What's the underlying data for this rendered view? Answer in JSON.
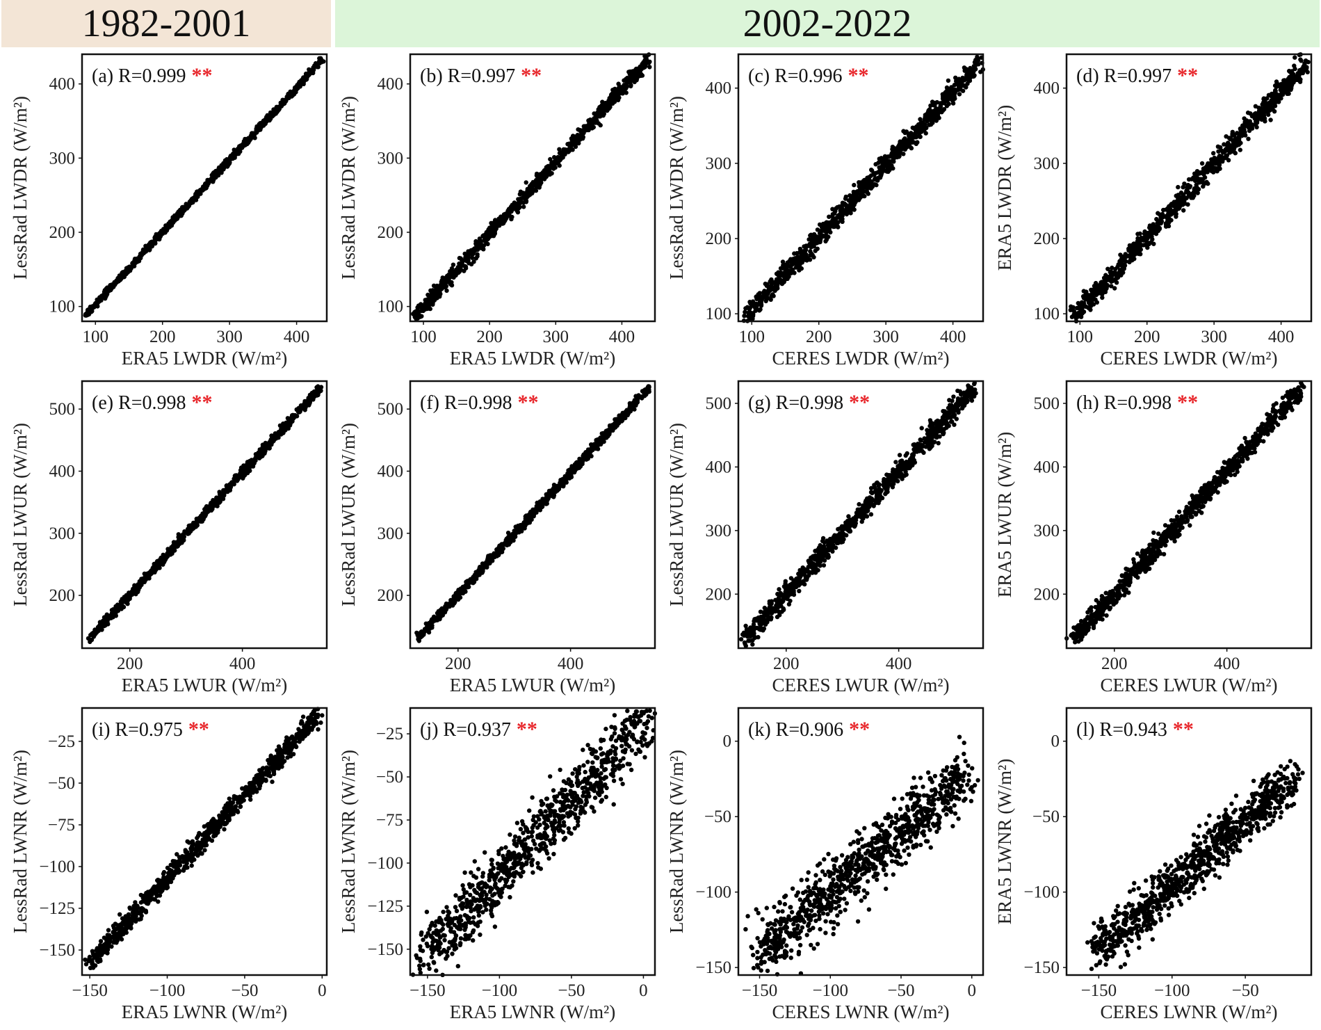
{
  "header": {
    "period_1": "1982-2001",
    "period_2": "2002-2022",
    "period_1_color": "#f3e5d6",
    "period_2_color": "#dcf5d9"
  },
  "significance_mark": "**",
  "significance_color": "#e8262b",
  "point_color": "#000000",
  "chart_data": [
    {
      "type": "scatter",
      "id": "a",
      "label": "(a) R=0.999",
      "r": 0.999,
      "xlabel": "ERA5 LWDR (W/m²)",
      "ylabel": "LessRad LWDR (W/m²)",
      "xlim": [
        80,
        445
      ],
      "ylim": [
        80,
        440
      ],
      "xticks": [
        100,
        200,
        300,
        400
      ],
      "yticks": [
        100,
        200,
        300,
        400
      ],
      "x_range": [
        85,
        438
      ],
      "y_range": [
        88,
        432
      ],
      "spread": 3
    },
    {
      "type": "scatter",
      "id": "b",
      "label": "(b) R=0.997",
      "r": 0.997,
      "xlabel": "ERA5 LWDR (W/m²)",
      "ylabel": "LessRad LWDR (W/m²)",
      "xlim": [
        80,
        450
      ],
      "ylim": [
        80,
        440
      ],
      "xticks": [
        100,
        200,
        300,
        400
      ],
      "yticks": [
        100,
        200,
        300,
        400
      ],
      "x_range": [
        88,
        440
      ],
      "y_range": [
        88,
        432
      ],
      "spread": 6
    },
    {
      "type": "scatter",
      "id": "c",
      "label": "(c) R=0.996",
      "r": 0.996,
      "xlabel": "CERES LWDR (W/m²)",
      "ylabel": "LessRad LWDR (W/m²)",
      "xlim": [
        80,
        445
      ],
      "ylim": [
        90,
        445
      ],
      "xticks": [
        100,
        200,
        300,
        400
      ],
      "yticks": [
        100,
        200,
        300,
        400
      ],
      "x_range": [
        90,
        440
      ],
      "y_range": [
        95,
        435
      ],
      "spread": 9
    },
    {
      "type": "scatter",
      "id": "d",
      "label": "(d) R=0.997",
      "r": 0.997,
      "xlabel": "CERES LWDR (W/m²)",
      "ylabel": "ERA5 LWDR (W/m²)",
      "xlim": [
        80,
        445
      ],
      "ylim": [
        90,
        445
      ],
      "xticks": [
        100,
        200,
        300,
        400
      ],
      "yticks": [
        100,
        200,
        300,
        400
      ],
      "x_range": [
        90,
        440
      ],
      "y_range": [
        95,
        435
      ],
      "spread": 9
    },
    {
      "type": "scatter",
      "id": "e",
      "label": "(e) R=0.998",
      "r": 0.998,
      "xlabel": "ERA5 LWUR (W/m²)",
      "ylabel": "LessRad LWUR (W/m²)",
      "xlim": [
        115,
        550
      ],
      "ylim": [
        115,
        545
      ],
      "xticks": [
        200,
        400
      ],
      "yticks": [
        200,
        300,
        400,
        500
      ],
      "x_range": [
        128,
        540
      ],
      "y_range": [
        130,
        535
      ],
      "spread": 5
    },
    {
      "type": "scatter",
      "id": "f",
      "label": "(f) R=0.998",
      "r": 0.998,
      "xlabel": "ERA5 LWUR (W/m²)",
      "ylabel": "LessRad LWUR (W/m²)",
      "xlim": [
        115,
        550
      ],
      "ylim": [
        115,
        545
      ],
      "xticks": [
        200,
        400
      ],
      "yticks": [
        200,
        300,
        400,
        500
      ],
      "x_range": [
        128,
        540
      ],
      "y_range": [
        130,
        535
      ],
      "spread": 5
    },
    {
      "type": "scatter",
      "id": "g",
      "label": "(g) R=0.998",
      "r": 0.998,
      "xlabel": "CERES LWUR (W/m²)",
      "ylabel": "LessRad LWUR (W/m²)",
      "xlim": [
        115,
        550
      ],
      "ylim": [
        115,
        535
      ],
      "xticks": [
        200,
        400
      ],
      "yticks": [
        200,
        300,
        400,
        500
      ],
      "x_range": [
        128,
        535
      ],
      "y_range": [
        130,
        525
      ],
      "spread": 11
    },
    {
      "type": "scatter",
      "id": "h",
      "label": "(h) R=0.998",
      "r": 0.998,
      "xlabel": "CERES LWUR (W/m²)",
      "ylabel": "ERA5 LWUR (W/m²)",
      "xlim": [
        115,
        550
      ],
      "ylim": [
        115,
        535
      ],
      "xticks": [
        200,
        400
      ],
      "yticks": [
        200,
        300,
        400,
        500
      ],
      "x_range": [
        128,
        535
      ],
      "y_range": [
        130,
        525
      ],
      "spread": 11
    },
    {
      "type": "scatter",
      "id": "i",
      "label": "(i) R=0.975",
      "r": 0.975,
      "xlabel": "ERA5 LWNR (W/m²)",
      "ylabel": "LessRad LWNR (W/m²)",
      "xlim": [
        -155,
        3
      ],
      "ylim": [
        -165,
        -5
      ],
      "xticks": [
        -150,
        -100,
        -50,
        0
      ],
      "yticks": [
        -150,
        -125,
        -100,
        -75,
        -50,
        -25
      ],
      "x_range": [
        -150,
        -3
      ],
      "y_range": [
        -158,
        -10
      ],
      "spread": 4
    },
    {
      "type": "scatter",
      "id": "j",
      "label": "(j) R=0.937",
      "r": 0.937,
      "xlabel": "ERA5 LWNR (W/m²)",
      "ylabel": "LessRad LWNR (W/m²)",
      "xlim": [
        -162,
        8
      ],
      "ylim": [
        -165,
        -10
      ],
      "xticks": [
        -150,
        -100,
        -50,
        0
      ],
      "yticks": [
        -150,
        -125,
        -100,
        -75,
        -50,
        -25
      ],
      "x_range": [
        -152,
        4
      ],
      "y_range": [
        -155,
        -15
      ],
      "spread": 12
    },
    {
      "type": "scatter",
      "id": "k",
      "label": "(k) R=0.906",
      "r": 0.906,
      "xlabel": "CERES LWNR (W/m²)",
      "ylabel": "LessRad LWNR (W/m²)",
      "xlim": [
        -165,
        8
      ],
      "ylim": [
        -155,
        22
      ],
      "xticks": [
        -150,
        -100,
        -50,
        0
      ],
      "yticks": [
        -150,
        -100,
        -50,
        0
      ],
      "x_range": [
        -150,
        -5
      ],
      "y_range": [
        -140,
        -25
      ],
      "spread": 14
    },
    {
      "type": "scatter",
      "id": "l",
      "label": "(l) R=0.943",
      "r": 0.943,
      "xlabel": "CERES LWNR (W/m²)",
      "ylabel": "ERA5 LWNR (W/m²)",
      "xlim": [
        -172,
        -5
      ],
      "ylim": [
        -155,
        22
      ],
      "xticks": [
        -150,
        -100,
        -50
      ],
      "yticks": [
        -150,
        -100,
        -50,
        0
      ],
      "x_range": [
        -152,
        -18
      ],
      "y_range": [
        -140,
        -25
      ],
      "spread": 11
    }
  ]
}
